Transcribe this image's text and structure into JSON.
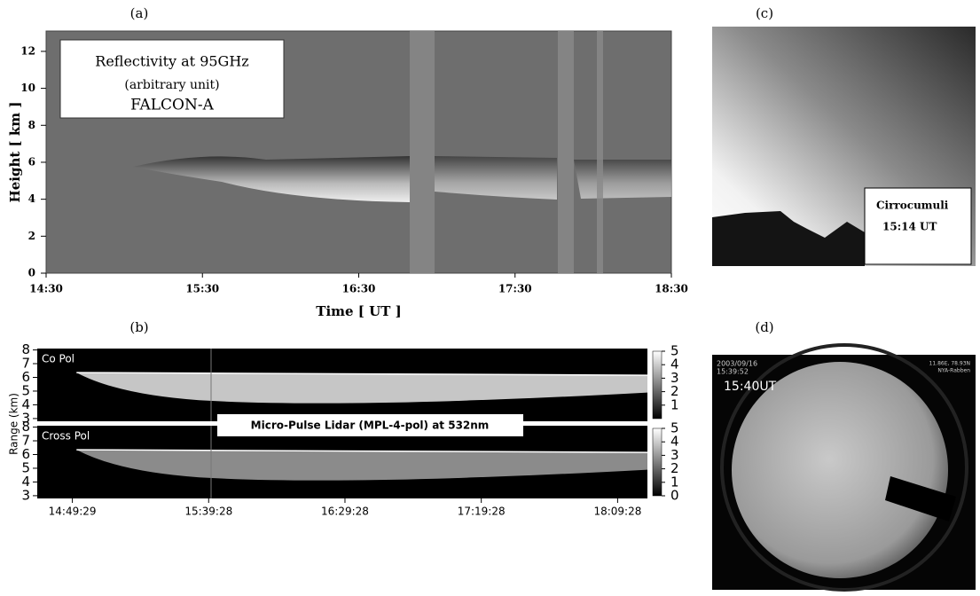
{
  "chart_data": [
    {
      "type": "heatmap",
      "panel_label": "(a)",
      "legend_lines": [
        "Reflectivity at 95GHz",
        "(arbitrary unit)",
        "FALCON-A"
      ],
      "xlabel": "Time [ UT ]",
      "ylabel": "Height [ km ]",
      "xlim": [
        14.5,
        18.5
      ],
      "xticks": [
        {
          "value": 14.5,
          "label": "14:30"
        },
        {
          "value": 15.5,
          "label": "15:30"
        },
        {
          "value": 16.5,
          "label": "16:30"
        },
        {
          "value": 17.5,
          "label": "17:30"
        },
        {
          "value": 18.5,
          "label": "18:30"
        }
      ],
      "ylim": [
        0,
        13.1
      ],
      "yticks": [
        0,
        2,
        4,
        6,
        8,
        10,
        12
      ]
    },
    {
      "type": "lidar",
      "panel_label": "(b)",
      "title": "Micro-Pulse Lidar (MPL-4-pol) at 532nm",
      "ylabel": "Range (km)",
      "xlim": [
        14.61,
        18.34
      ],
      "xticks": [
        {
          "value": 14.8247,
          "label": "14:49:29"
        },
        {
          "value": 15.6578,
          "label": "15:39:28"
        },
        {
          "value": 16.4911,
          "label": "16:29:28"
        },
        {
          "value": 17.3244,
          "label": "17:19:28"
        },
        {
          "value": 18.1578,
          "label": "18:09:28"
        }
      ],
      "subplots": [
        {
          "name": "Co Pol",
          "ylim": [
            2.8,
            8.1
          ],
          "yticks": [
            3,
            4,
            5,
            6,
            7,
            8
          ],
          "clim": [
            0,
            5
          ],
          "cticks": [
            1,
            2,
            3,
            4,
            5
          ]
        },
        {
          "name": "Cross Pol",
          "ylim": [
            2.8,
            8.1
          ],
          "yticks": [
            3,
            4,
            5,
            6,
            7,
            8
          ],
          "clim": [
            0,
            5
          ],
          "cticks": [
            0,
            1,
            2,
            3,
            4,
            5
          ]
        }
      ]
    }
  ],
  "photos": [
    {
      "panel_label": "(c)",
      "caption": [
        "Cirrocumuli",
        "15:14 UT"
      ]
    },
    {
      "panel_label": "(d)",
      "overlay": [
        "2003/09/16",
        "15:39:52",
        "11.86E, 78.93N",
        "NYA-Rabben"
      ],
      "time": "15:40UT"
    }
  ]
}
